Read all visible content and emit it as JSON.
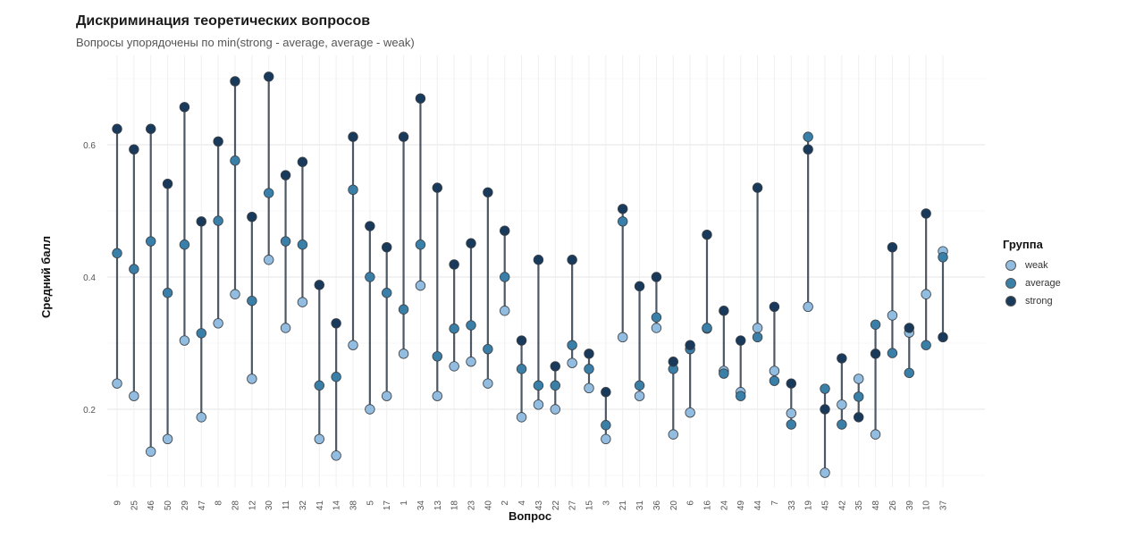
{
  "chart_data": {
    "type": "dumbbell",
    "title": "Дискриминация теоретических вопросов",
    "subtitle": "Вопросы упорядочены по min(strong - average, average - weak)",
    "xlabel": "Вопрос",
    "ylabel": "Средний балл",
    "ylim": [
      0.09,
      0.73
    ],
    "yticks": [
      0.2,
      0.4,
      0.6
    ],
    "grid": true,
    "legend": {
      "title": "Группа",
      "placement": "right"
    },
    "colors": {
      "weak": "#92bde0",
      "average": "#3a7fa8",
      "strong": "#1a3a5c",
      "segment": "#4d5864"
    },
    "categories": [
      "9",
      "25",
      "46",
      "50",
      "29",
      "47",
      "8",
      "28",
      "12",
      "30",
      "11",
      "32",
      "41",
      "14",
      "38",
      "5",
      "17",
      "1",
      "34",
      "13",
      "18",
      "23",
      "40",
      "2",
      "4",
      "43",
      "22",
      "27",
      "15",
      "3",
      "21",
      "31",
      "36",
      "20",
      "6",
      "16",
      "24",
      "49",
      "44",
      "7",
      "33",
      "19",
      "45",
      "42",
      "35",
      "48",
      "26",
      "39",
      "10",
      "37"
    ],
    "series": [
      {
        "name": "weak",
        "values": [
          0.239,
          0.22,
          0.136,
          0.155,
          0.304,
          0.188,
          0.33,
          0.374,
          0.246,
          0.426,
          0.323,
          0.362,
          0.155,
          0.13,
          0.297,
          0.2,
          0.22,
          0.284,
          0.387,
          0.22,
          0.265,
          0.272,
          0.239,
          0.349,
          0.188,
          0.207,
          0.2,
          0.27,
          0.232,
          0.155,
          0.309,
          0.22,
          0.323,
          0.162,
          0.195,
          0.322,
          0.258,
          0.226,
          0.323,
          0.258,
          0.194,
          0.355,
          0.104,
          0.207,
          0.246,
          0.162,
          0.342,
          0.316,
          0.374,
          0.439
        ]
      },
      {
        "name": "average",
        "values": [
          0.436,
          0.412,
          0.454,
          0.376,
          0.449,
          0.315,
          0.485,
          0.576,
          0.364,
          0.527,
          0.454,
          0.449,
          0.236,
          0.249,
          0.532,
          0.4,
          0.376,
          0.351,
          0.449,
          0.28,
          0.322,
          0.327,
          0.291,
          0.4,
          0.261,
          0.236,
          0.236,
          0.297,
          0.261,
          0.176,
          0.484,
          0.236,
          0.339,
          0.261,
          0.291,
          0.323,
          0.254,
          0.22,
          0.309,
          0.243,
          0.177,
          0.612,
          0.231,
          0.177,
          0.219,
          0.328,
          0.285,
          0.255,
          0.297,
          0.43
        ]
      },
      {
        "name": "strong",
        "values": [
          0.624,
          0.593,
          0.624,
          0.541,
          0.657,
          0.484,
          0.605,
          0.696,
          0.491,
          0.703,
          0.554,
          0.574,
          0.388,
          0.33,
          0.612,
          0.477,
          0.445,
          0.612,
          0.67,
          0.535,
          0.419,
          0.451,
          0.528,
          0.47,
          0.304,
          0.426,
          0.265,
          0.426,
          0.284,
          0.226,
          0.503,
          0.386,
          0.4,
          0.272,
          0.297,
          0.464,
          0.349,
          0.304,
          0.535,
          0.355,
          0.239,
          0.593,
          0.2,
          0.277,
          0.188,
          0.284,
          0.445,
          0.323,
          0.496,
          0.309
        ]
      }
    ]
  }
}
